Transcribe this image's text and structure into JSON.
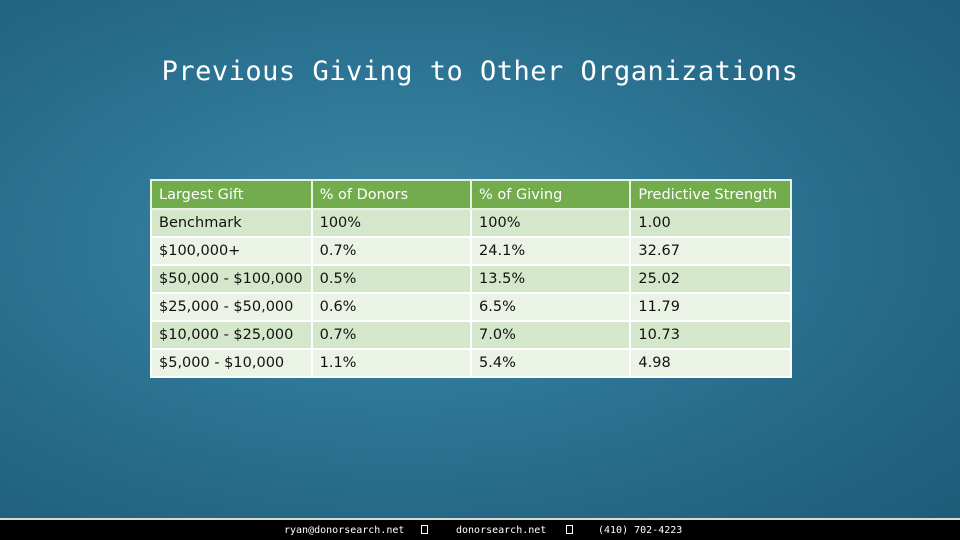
{
  "title": "Previous Giving to Other Organizations",
  "table": {
    "headers": [
      "Largest Gift",
      "% of Donors",
      "% of Giving",
      "Predictive Strength"
    ],
    "rows": [
      [
        "Benchmark",
        "100%",
        "100%",
        "1.00"
      ],
      [
        "$100,000+",
        "0.7%",
        "24.1%",
        "32.67"
      ],
      [
        "$50,000 - $100,000",
        "0.5%",
        "13.5%",
        "25.02"
      ],
      [
        "$25,000 - $50,000",
        "0.6%",
        "6.5%",
        "11.79"
      ],
      [
        "$10,000 - $25,000",
        "0.7%",
        "7.0%",
        "10.73"
      ],
      [
        "$5,000 - $10,000",
        "1.1%",
        "5.4%",
        "4.98"
      ]
    ]
  },
  "colors": {
    "header_green": "#72ac4d",
    "row_dark": "#d5e7cb",
    "row_light": "#eaf3e5"
  },
  "footer": {
    "email": "ryan@donorsearch.net",
    "website": "donorsearch.net",
    "phone": "(410) 702-4223",
    "separator_icon": "square-bullet-icon"
  }
}
